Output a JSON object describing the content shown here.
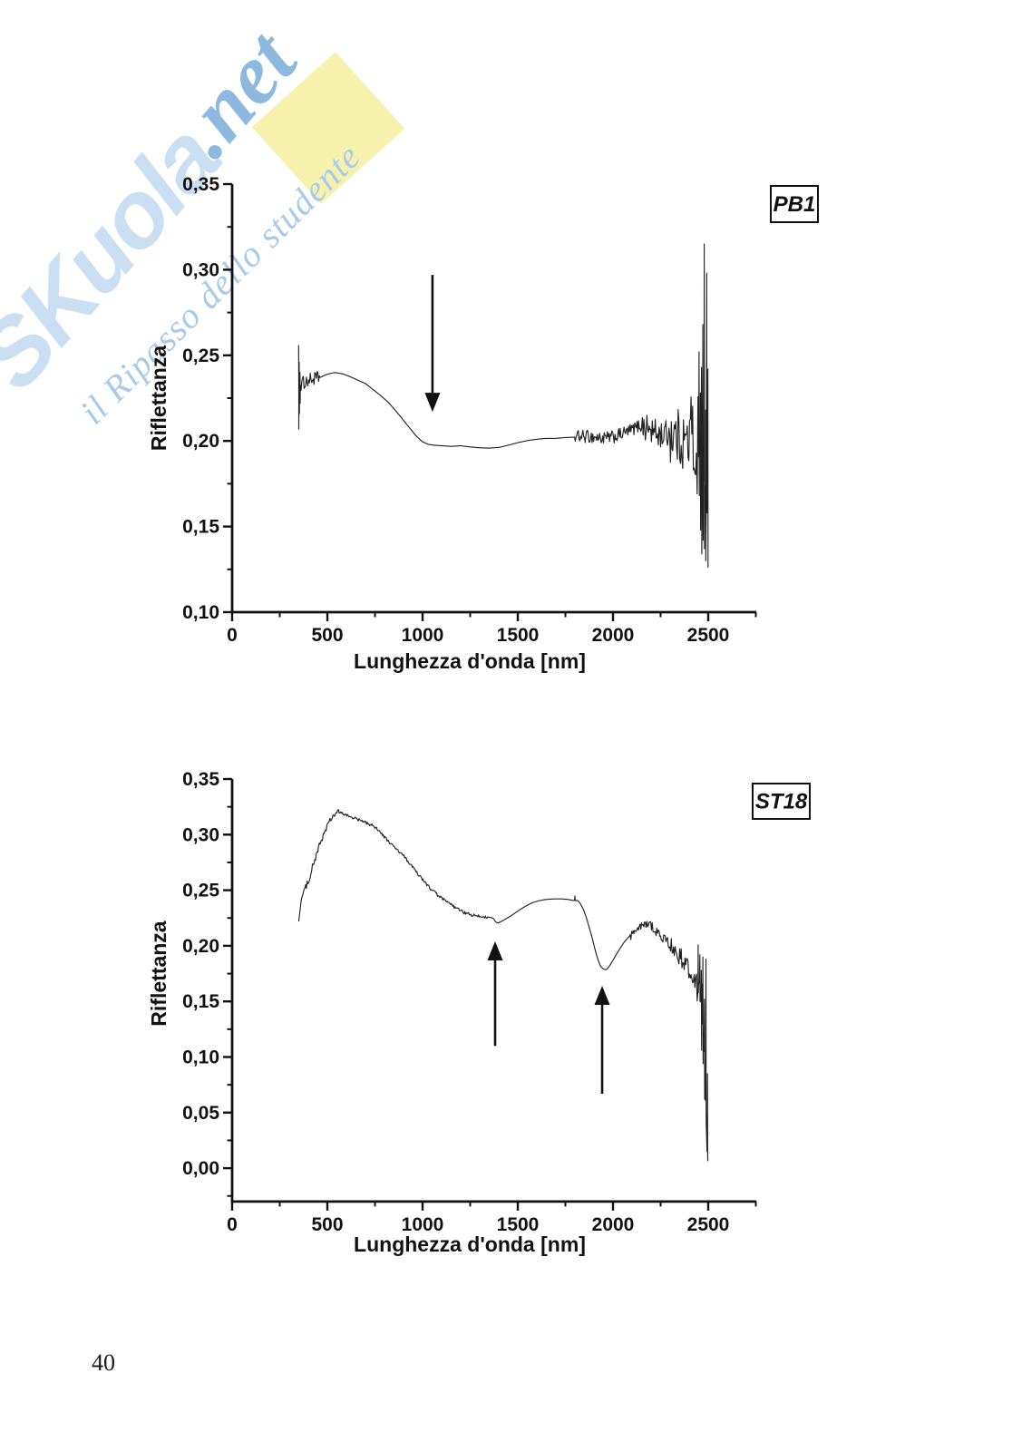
{
  "page": {
    "number": "40"
  },
  "watermark": {
    "brand": "SKuola",
    "tld": ".net",
    "tagline": "il Ripasso dello studente",
    "colors": {
      "brand": "#cbdff2",
      "script": "#8db8e0",
      "tagline": "#a9cbe9",
      "yellow": "#f7f0aa"
    }
  },
  "chart_data": [
    {
      "id": "pb1",
      "type": "line",
      "title_box": "PB1",
      "xlabel": "Lunghezza d'onda [nm]",
      "ylabel": "Riflettanza",
      "xlim": [
        0,
        2752
      ],
      "ylim": [
        0.1,
        0.35
      ],
      "grid": false,
      "legend_position": "none",
      "x_ticks": [
        {
          "v": 0,
          "label": "0"
        },
        {
          "v": 500,
          "label": "500"
        },
        {
          "v": 1000,
          "label": "1000"
        },
        {
          "v": 1500,
          "label": "1500"
        },
        {
          "v": 2000,
          "label": "2000"
        },
        {
          "v": 2500,
          "label": "2500"
        }
      ],
      "x_minor": [
        250,
        750,
        1250,
        1750,
        2250,
        2750
      ],
      "y_ticks": [
        {
          "v": 0.1,
          "label": "0,10"
        },
        {
          "v": 0.15,
          "label": "0,15"
        },
        {
          "v": 0.2,
          "label": "0,20"
        },
        {
          "v": 0.25,
          "label": "0,25"
        },
        {
          "v": 0.3,
          "label": "0,30"
        },
        {
          "v": 0.35,
          "label": "0,35"
        }
      ],
      "y_minor": [
        0.125,
        0.175,
        0.225,
        0.275,
        0.325
      ],
      "series": [
        {
          "name": "PB1 riflettanza",
          "anchors": [
            [
              350,
              0.232
            ],
            [
              380,
              0.2345
            ],
            [
              420,
              0.236
            ],
            [
              460,
              0.237
            ],
            [
              500,
              0.239
            ],
            [
              540,
              0.24
            ],
            [
              580,
              0.2392
            ],
            [
              620,
              0.2375
            ],
            [
              660,
              0.2355
            ],
            [
              700,
              0.2335
            ],
            [
              740,
              0.23
            ],
            [
              780,
              0.2265
            ],
            [
              820,
              0.2225
            ],
            [
              860,
              0.2175
            ],
            [
              900,
              0.212
            ],
            [
              940,
              0.2065
            ],
            [
              970,
              0.2025
            ],
            [
              1000,
              0.1995
            ],
            [
              1030,
              0.198
            ],
            [
              1060,
              0.1975
            ],
            [
              1100,
              0.1972
            ],
            [
              1150,
              0.1968
            ],
            [
              1200,
              0.1972
            ],
            [
              1250,
              0.1965
            ],
            [
              1300,
              0.196
            ],
            [
              1350,
              0.1958
            ],
            [
              1400,
              0.1962
            ],
            [
              1450,
              0.1975
            ],
            [
              1500,
              0.199
            ],
            [
              1550,
              0.2002
            ],
            [
              1600,
              0.201
            ],
            [
              1650,
              0.2015
            ],
            [
              1700,
              0.2015
            ],
            [
              1750,
              0.202
            ],
            [
              1800,
              0.2022
            ],
            [
              1850,
              0.2028
            ],
            [
              1900,
              0.2022
            ],
            [
              1950,
              0.2015
            ],
            [
              2000,
              0.2022
            ],
            [
              2050,
              0.2042
            ],
            [
              2100,
              0.2065
            ],
            [
              2140,
              0.209
            ],
            [
              2180,
              0.2075
            ],
            [
              2220,
              0.2045
            ],
            [
              2260,
              0.2035
            ],
            [
              2300,
              0.2045
            ],
            [
              2350,
              0.2015
            ],
            [
              2400,
              0.199
            ],
            [
              2450,
              0.198
            ],
            [
              2500,
              0.16
            ]
          ],
          "noise": [
            {
              "from": 360,
              "to": 460,
              "amp": 0.004,
              "seedmix": 1
            },
            {
              "from": 1800,
              "to": 2150,
              "amp": 0.0038,
              "seedmix": 2
            },
            {
              "from": 2150,
              "to": 2300,
              "amp": 0.0085,
              "seedmix": 3
            },
            {
              "from": 2300,
              "to": 2400,
              "amp": 0.017,
              "seedmix": 4
            },
            {
              "from": 2400,
              "to": 2452,
              "amp": 0.034,
              "seedmix": 5
            }
          ],
          "spikes": [
            [
              349,
              0.256,
              0.207
            ],
            [
              352,
              0.246,
              0.216
            ],
            [
              356,
              0.24,
              0.222
            ],
            [
              2452,
              0.252,
              0.168
            ],
            [
              2459,
              0.228,
              0.148
            ],
            [
              2465,
              0.243,
              0.134
            ],
            [
              2472,
              0.268,
              0.142
            ],
            [
              2479,
              0.315,
              0.137
            ],
            [
              2486,
              0.218,
              0.13
            ],
            [
              2492,
              0.298,
              0.158
            ],
            [
              2498,
              0.242,
              0.126
            ]
          ]
        }
      ],
      "annotations": [
        {
          "type": "arrow",
          "dir": "down",
          "nm": 1052,
          "r_from": 0.297,
          "r_to": 0.217
        }
      ]
    },
    {
      "id": "st18",
      "type": "line",
      "title_box": "ST18",
      "xlabel": "Lunghezza d'onda [nm]",
      "ylabel": "Riflettanza",
      "xlim": [
        0,
        2752
      ],
      "ylim": [
        -0.03,
        0.35
      ],
      "grid": false,
      "legend_position": "none",
      "x_ticks": [
        {
          "v": 0,
          "label": "0"
        },
        {
          "v": 500,
          "label": "500"
        },
        {
          "v": 1000,
          "label": "1000"
        },
        {
          "v": 1500,
          "label": "1500"
        },
        {
          "v": 2000,
          "label": "2000"
        },
        {
          "v": 2500,
          "label": "2500"
        }
      ],
      "x_minor": [
        250,
        750,
        1250,
        1750,
        2250,
        2750
      ],
      "y_ticks": [
        {
          "v": 0.0,
          "label": "0,00"
        },
        {
          "v": 0.05,
          "label": "0,05"
        },
        {
          "v": 0.1,
          "label": "0,10"
        },
        {
          "v": 0.15,
          "label": "0,15"
        },
        {
          "v": 0.2,
          "label": "0,20"
        },
        {
          "v": 0.25,
          "label": "0,25"
        },
        {
          "v": 0.3,
          "label": "0,30"
        },
        {
          "v": 0.35,
          "label": "0,35"
        }
      ],
      "y_minor": [
        -0.025,
        0.025,
        0.075,
        0.125,
        0.175,
        0.225,
        0.275,
        0.325
      ],
      "series": [
        {
          "name": "ST18 riflettanza",
          "anchors": [
            [
              350,
              0.222
            ],
            [
              358,
              0.236
            ],
            [
              368,
              0.245
            ],
            [
              385,
              0.252
            ],
            [
              400,
              0.258
            ],
            [
              420,
              0.27
            ],
            [
              440,
              0.28
            ],
            [
              460,
              0.291
            ],
            [
              480,
              0.3
            ],
            [
              500,
              0.308
            ],
            [
              520,
              0.314
            ],
            [
              545,
              0.3195
            ],
            [
              565,
              0.32
            ],
            [
              590,
              0.318
            ],
            [
              620,
              0.3162
            ],
            [
              650,
              0.3143
            ],
            [
              680,
              0.3122
            ],
            [
              710,
              0.3102
            ],
            [
              740,
              0.3078
            ],
            [
              760,
              0.3058
            ],
            [
              790,
              0.2995
            ],
            [
              820,
              0.294
            ],
            [
              850,
              0.289
            ],
            [
              880,
              0.284
            ],
            [
              900,
              0.281
            ],
            [
              930,
              0.2745
            ],
            [
              960,
              0.268
            ],
            [
              990,
              0.2615
            ],
            [
              1020,
              0.2555
            ],
            [
              1050,
              0.25
            ],
            [
              1080,
              0.2455
            ],
            [
              1110,
              0.2415
            ],
            [
              1140,
              0.238
            ],
            [
              1170,
              0.2345
            ],
            [
              1200,
              0.2315
            ],
            [
              1230,
              0.229
            ],
            [
              1260,
              0.2275
            ],
            [
              1290,
              0.2265
            ],
            [
              1320,
              0.2262
            ],
            [
              1350,
              0.2258
            ],
            [
              1372,
              0.2248
            ],
            [
              1385,
              0.2212
            ],
            [
              1398,
              0.2205
            ],
            [
              1412,
              0.2218
            ],
            [
              1430,
              0.2235
            ],
            [
              1460,
              0.2265
            ],
            [
              1490,
              0.23
            ],
            [
              1520,
              0.2335
            ],
            [
              1550,
              0.2365
            ],
            [
              1580,
              0.239
            ],
            [
              1610,
              0.2405
            ],
            [
              1640,
              0.2415
            ],
            [
              1670,
              0.242
            ],
            [
              1700,
              0.2422
            ],
            [
              1730,
              0.2422
            ],
            [
              1760,
              0.2418
            ],
            [
              1790,
              0.2408
            ],
            [
              1815,
              0.2408
            ],
            [
              1830,
              0.2375
            ],
            [
              1845,
              0.2325
            ],
            [
              1860,
              0.2255
            ],
            [
              1875,
              0.2165
            ],
            [
              1890,
              0.2075
            ],
            [
              1905,
              0.197
            ],
            [
              1920,
              0.188
            ],
            [
              1935,
              0.1815
            ],
            [
              1950,
              0.179
            ],
            [
              1965,
              0.1785
            ],
            [
              1980,
              0.1815
            ],
            [
              2000,
              0.187
            ],
            [
              2020,
              0.193
            ],
            [
              2040,
              0.1985
            ],
            [
              2060,
              0.2035
            ],
            [
              2080,
              0.2075
            ],
            [
              2100,
              0.2105
            ],
            [
              2120,
              0.2135
            ],
            [
              2140,
              0.216
            ],
            [
              2160,
              0.2185
            ],
            [
              2180,
              0.22
            ],
            [
              2200,
              0.2185
            ],
            [
              2220,
              0.2145
            ],
            [
              2240,
              0.2105
            ],
            [
              2260,
              0.2075
            ],
            [
              2280,
              0.2045
            ],
            [
              2300,
              0.2005
            ],
            [
              2320,
              0.1965
            ],
            [
              2340,
              0.1925
            ],
            [
              2360,
              0.1885
            ],
            [
              2380,
              0.1835
            ],
            [
              2400,
              0.178
            ],
            [
              2420,
              0.172
            ],
            [
              2440,
              0.166
            ],
            [
              2455,
              0.162
            ],
            [
              2468,
              0.15
            ],
            [
              2478,
              0.105
            ],
            [
              2487,
              0.055
            ],
            [
              2494,
              0.015
            ],
            [
              2500,
              0.002
            ]
          ],
          "noise": [
            {
              "from": 352,
              "to": 560,
              "amp": 0.0028,
              "seedmix": 1
            },
            {
              "from": 560,
              "to": 1340,
              "amp": 0.0014,
              "seedmix": 2
            },
            {
              "from": 2090,
              "to": 2300,
              "amp": 0.0042,
              "seedmix": 3
            },
            {
              "from": 2300,
              "to": 2430,
              "amp": 0.0085,
              "seedmix": 4
            },
            {
              "from": 2430,
              "to": 2470,
              "amp": 0.016,
              "seedmix": 5
            }
          ],
          "spikes": [
            [
              1800,
              0.2448
            ],
            [
              2447,
              0.201,
              0.158
            ],
            [
              2456,
              0.192,
              0.15
            ],
            [
              2464,
              0.178,
              0.106
            ],
            [
              2472,
              0.19,
              0.094
            ],
            [
              2480,
              0.152,
              0.062
            ],
            [
              2488,
              0.188,
              0.048
            ],
            [
              2496,
              0.085,
              0.012
            ]
          ]
        }
      ],
      "annotations": [
        {
          "type": "arrow",
          "dir": "up",
          "nm": 1381,
          "r_from": 0.11,
          "r_to": 0.204
        },
        {
          "type": "arrow",
          "dir": "up",
          "nm": 1943,
          "r_from": 0.067,
          "r_to": 0.164
        }
      ]
    }
  ]
}
